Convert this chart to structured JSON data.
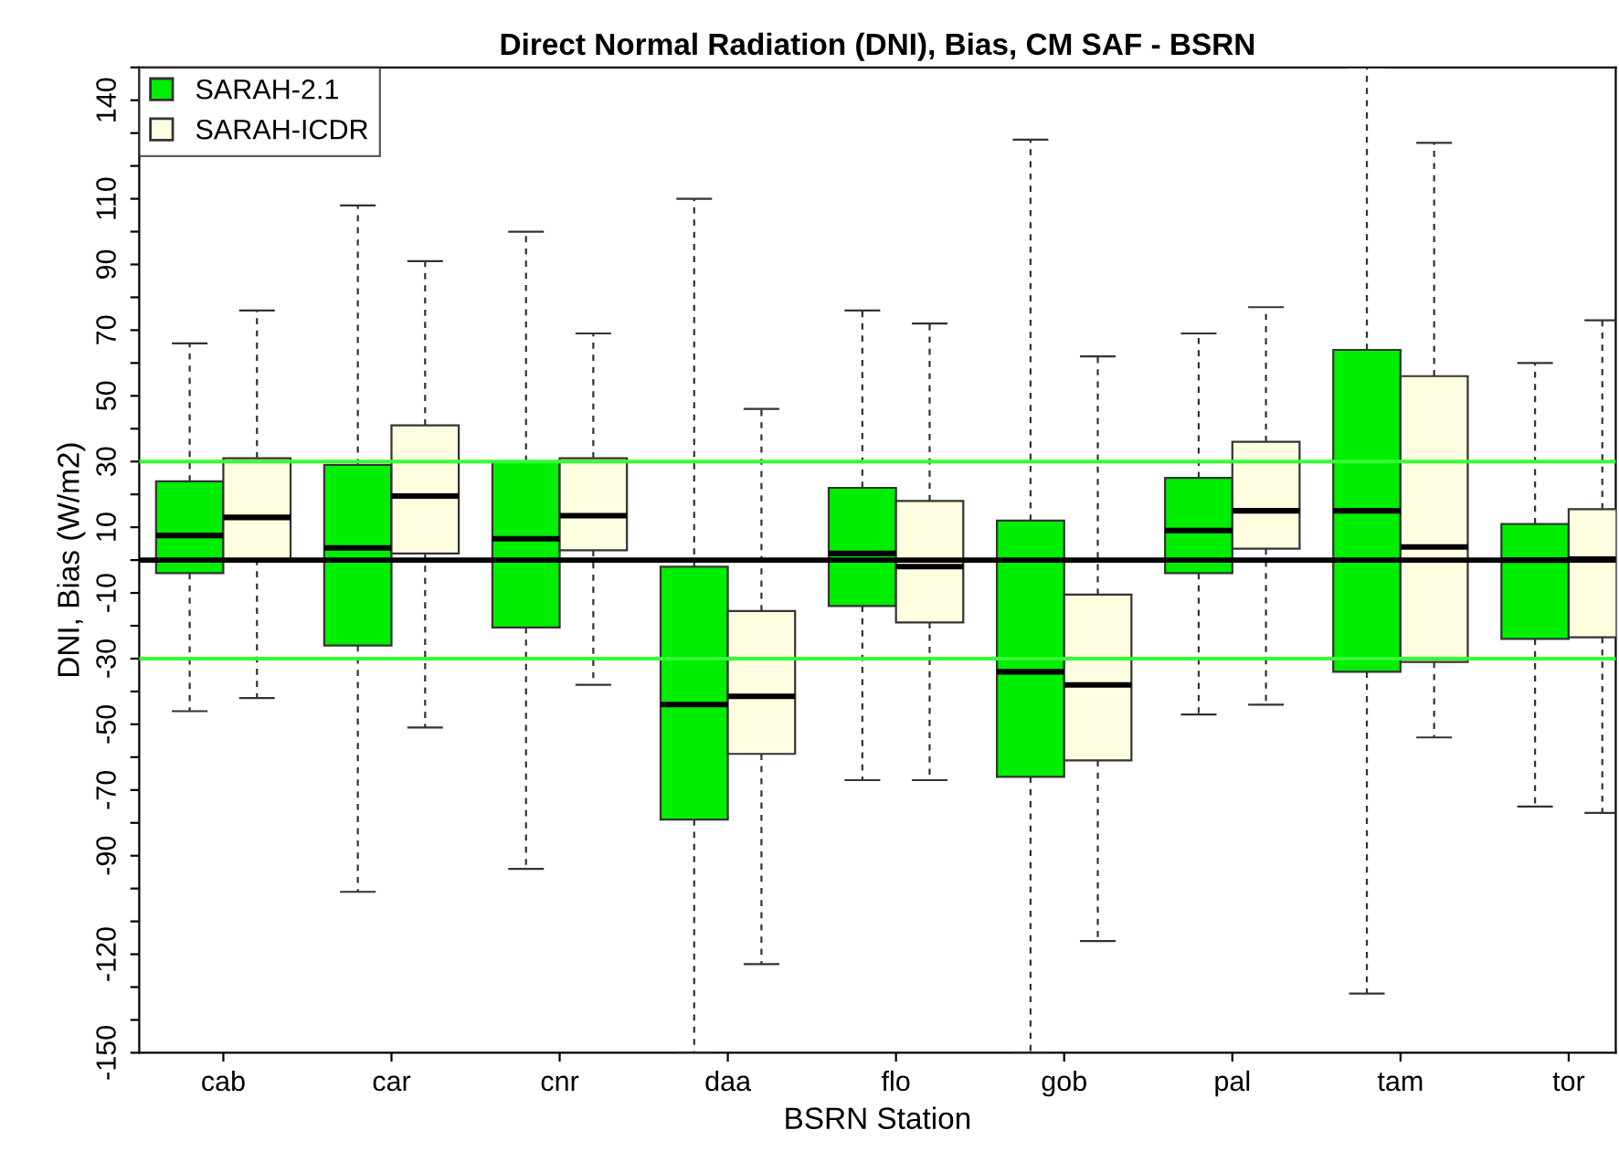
{
  "chart_data": {
    "type": "box",
    "title": "Direct Normal Radiation (DNI), Bias, CM SAF - BSRN",
    "xlabel": "BSRN Station",
    "ylabel": "DNI, Bias (W/m2)",
    "categories": [
      "cab",
      "car",
      "cnr",
      "daa",
      "flo",
      "gob",
      "pal",
      "tam",
      "tor"
    ],
    "ylim": [
      -150,
      150
    ],
    "yticks": [
      {
        "value": 150,
        "label": null
      },
      140,
      {
        "value": 130,
        "label": null
      },
      {
        "value": 120,
        "label": null
      },
      110,
      {
        "value": 100,
        "label": null
      },
      90,
      {
        "value": 80,
        "label": null
      },
      70,
      {
        "value": 60,
        "label": null
      },
      50,
      {
        "value": 40,
        "label": null
      },
      30,
      {
        "value": 20,
        "label": null
      },
      10,
      {
        "value": 0,
        "label": null
      },
      -10,
      {
        "value": -20,
        "label": null
      },
      -30,
      {
        "value": -40,
        "label": null
      },
      -50,
      {
        "value": -60,
        "label": null
      },
      -70,
      {
        "value": -80,
        "label": null
      },
      -90,
      {
        "value": -100,
        "label": null
      },
      {
        "value": -110,
        "label": null
      },
      -120,
      {
        "value": -130,
        "label": null
      },
      {
        "value": -140,
        "label": null
      },
      -150
    ],
    "grid": false,
    "legend": "top left",
    "ref_lines": [
      {
        "axis": "y",
        "value": 0,
        "color": "#000000"
      },
      {
        "axis": "y",
        "value": 30,
        "color": "#33ff33"
      },
      {
        "axis": "y",
        "value": -30,
        "color": "#33ff33"
      }
    ],
    "series": [
      {
        "name": "SARAH-2.1",
        "color": "#00ee00",
        "boxes": [
          {
            "low": -46,
            "q1": -4,
            "median": 7.5,
            "q3": 24,
            "high": 66
          },
          {
            "low": -101,
            "q1": -26,
            "median": 3.7,
            "q3": 29,
            "high": 108
          },
          {
            "low": -94,
            "q1": -20.5,
            "median": 6.5,
            "q3": 30,
            "high": 100
          },
          {
            "low": -150,
            "q1": -79,
            "median": -44,
            "q3": -2,
            "high": 110
          },
          {
            "low": -67,
            "q1": -14,
            "median": 2,
            "q3": 22,
            "high": 76
          },
          {
            "low": -150,
            "q1": -66,
            "median": -34,
            "q3": 12,
            "high": 128
          },
          {
            "low": -47,
            "q1": -4,
            "median": 9,
            "q3": 25,
            "high": 69
          },
          {
            "low": -132,
            "q1": -34,
            "median": 15,
            "q3": 64,
            "high": 150
          },
          {
            "low": -75,
            "q1": -24,
            "median": 0,
            "q3": 11,
            "high": 60
          }
        ]
      },
      {
        "name": "SARAH-ICDR",
        "color": "#fffde0",
        "boxes": [
          {
            "low": -42,
            "q1": 0.3,
            "median": 13,
            "q3": 31,
            "high": 76
          },
          {
            "low": -51,
            "q1": 2,
            "median": 19.5,
            "q3": 41,
            "high": 91
          },
          {
            "low": -38,
            "q1": 3,
            "median": 13.5,
            "q3": 31,
            "high": 69
          },
          {
            "low": -123,
            "q1": -59,
            "median": -41.5,
            "q3": -15.5,
            "high": 46
          },
          {
            "low": -67,
            "q1": -19,
            "median": -2,
            "q3": 18,
            "high": 72
          },
          {
            "low": -116,
            "q1": -61,
            "median": -38,
            "q3": -10.5,
            "high": 62
          },
          {
            "low": -44,
            "q1": 3.5,
            "median": 15,
            "q3": 36,
            "high": 77
          },
          {
            "low": -54,
            "q1": -31,
            "median": 4,
            "q3": 56,
            "high": 127
          },
          {
            "low": -77,
            "q1": -23.5,
            "median": 0.3,
            "q3": 15.5,
            "high": 73
          }
        ]
      }
    ]
  }
}
